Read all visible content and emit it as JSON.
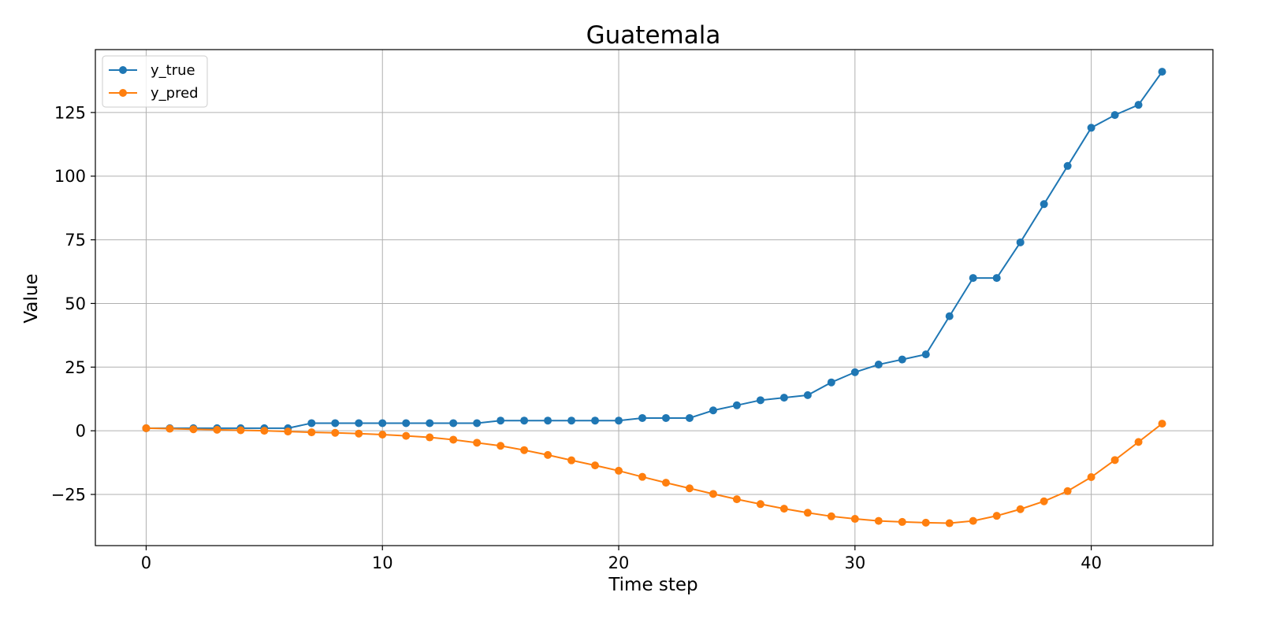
{
  "chart_data": {
    "type": "line",
    "title": "Guatemala",
    "xlabel": "Time step",
    "ylabel": "Value",
    "xlim": [
      -2.15,
      45.15
    ],
    "ylim": [
      -45.1,
      149.7
    ],
    "x_ticks": [
      0,
      10,
      20,
      30,
      40
    ],
    "y_ticks": [
      -25,
      0,
      25,
      50,
      75,
      100,
      125
    ],
    "grid": true,
    "legend_position": "top-left",
    "x": [
      0,
      1,
      2,
      3,
      4,
      5,
      6,
      7,
      8,
      9,
      10,
      11,
      12,
      13,
      14,
      15,
      16,
      17,
      18,
      19,
      20,
      21,
      22,
      23,
      24,
      25,
      26,
      27,
      28,
      29,
      30,
      31,
      32,
      33,
      34,
      35,
      36,
      37,
      38,
      39,
      40,
      41,
      42,
      43
    ],
    "series": [
      {
        "name": "y_true",
        "color": "#1f77b4",
        "values": [
          1,
          1,
          1,
          1,
          1,
          1,
          1,
          3,
          3,
          3,
          3,
          3,
          3,
          3,
          3,
          4,
          4,
          4,
          4,
          4,
          4,
          5,
          5,
          5,
          8,
          10,
          12,
          13,
          14,
          19,
          23,
          26,
          28,
          30,
          45,
          60,
          60,
          74,
          89,
          104,
          119,
          124,
          128,
          141
        ]
      },
      {
        "name": "y_pred",
        "color": "#ff7f0e",
        "values": [
          1.0,
          0.8,
          0.6,
          0.4,
          0.2,
          0.0,
          -0.3,
          -0.6,
          -0.8,
          -1.1,
          -1.5,
          -2.0,
          -2.6,
          -3.5,
          -4.7,
          -5.9,
          -7.6,
          -9.5,
          -11.6,
          -13.6,
          -15.7,
          -18.1,
          -20.4,
          -22.6,
          -24.8,
          -26.9,
          -28.8,
          -30.6,
          -32.2,
          -33.6,
          -34.6,
          -35.4,
          -35.8,
          -36.1,
          -36.3,
          -35.4,
          -33.4,
          -30.8,
          -27.7,
          -23.7,
          -18.2,
          -11.5,
          -4.4,
          2.8
        ]
      }
    ]
  }
}
